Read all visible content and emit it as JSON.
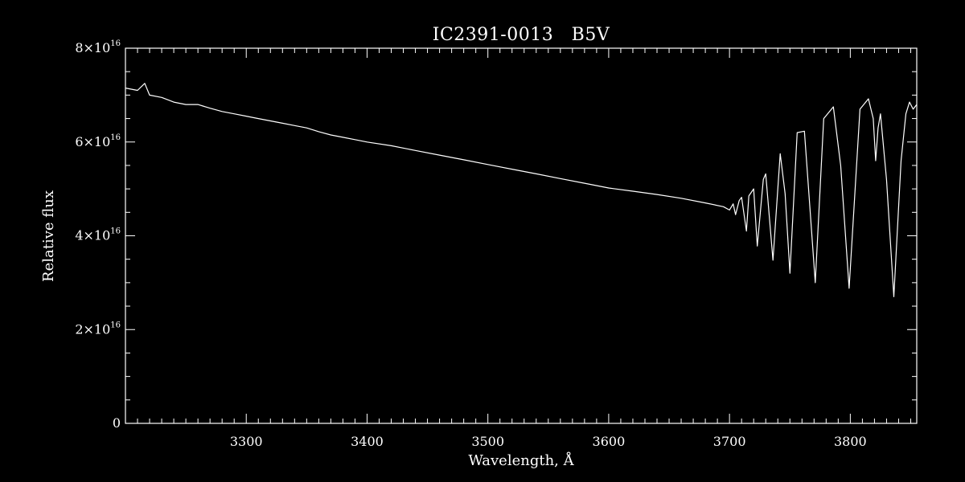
{
  "chart_data": {
    "type": "line",
    "title": "IC2391-0013   B5V",
    "xlabel": "Wavelength, Å",
    "ylabel": "Relative flux",
    "xlim": [
      3200,
      3855
    ],
    "ylim": [
      0,
      8e+16
    ],
    "grid": false,
    "x_ticks": [
      {
        "value": 3300,
        "label": "3300"
      },
      {
        "value": 3400,
        "label": "3400"
      },
      {
        "value": 3500,
        "label": "3500"
      },
      {
        "value": 3600,
        "label": "3600"
      },
      {
        "value": 3700,
        "label": "3700"
      },
      {
        "value": 3800,
        "label": "3800"
      }
    ],
    "y_ticks": [
      {
        "value": 0,
        "mantissa": "0",
        "times": "",
        "base": "",
        "exponent": ""
      },
      {
        "value": 2e+16,
        "mantissa": "2",
        "times": "×",
        "base": "10",
        "exponent": "16"
      },
      {
        "value": 4e+16,
        "mantissa": "4",
        "times": "×",
        "base": "10",
        "exponent": "16"
      },
      {
        "value": 6e+16,
        "mantissa": "6",
        "times": "×",
        "base": "10",
        "exponent": "16"
      },
      {
        "value": 8e+16,
        "mantissa": "8",
        "times": "×",
        "base": "10",
        "exponent": "16"
      }
    ],
    "series": [
      {
        "color": "#ffffff",
        "x": [
          3200,
          3210,
          3216,
          3220,
          3230,
          3240,
          3250,
          3260,
          3270,
          3280,
          3290,
          3300,
          3310,
          3320,
          3330,
          3340,
          3350,
          3360,
          3370,
          3380,
          3390,
          3400,
          3420,
          3440,
          3460,
          3480,
          3500,
          3520,
          3540,
          3560,
          3580,
          3600,
          3620,
          3640,
          3660,
          3680,
          3695,
          3700,
          3703,
          3705,
          3708,
          3710,
          3714,
          3716,
          3720,
          3723,
          3728,
          3730,
          3736,
          3742,
          3746,
          3750,
          3756,
          3762,
          3766,
          3771,
          3778,
          3786,
          3792,
          3799,
          3808,
          3815,
          3819,
          3821,
          3823,
          3825,
          3830,
          3836,
          3842,
          3846,
          3849,
          3852,
          3855
        ],
        "y": [
          7.15e+16,
          7.1e+16,
          7.25e+16,
          7e+16,
          6.95e+16,
          6.85e+16,
          6.8e+16,
          6.8e+16,
          6.72e+16,
          6.65e+16,
          6.6e+16,
          6.55e+16,
          6.5e+16,
          6.45e+16,
          6.4e+16,
          6.35e+16,
          6.3e+16,
          6.22e+16,
          6.15e+16,
          6.1e+16,
          6.05e+16,
          6e+16,
          5.92e+16,
          5.82e+16,
          5.72e+16,
          5.62e+16,
          5.52e+16,
          5.42e+16,
          5.32e+16,
          5.22e+16,
          5.12e+16,
          5.02e+16,
          4.95e+16,
          4.88e+16,
          4.8e+16,
          4.7e+16,
          4.62e+16,
          4.55e+16,
          4.68e+16,
          4.45e+16,
          4.75e+16,
          4.82e+16,
          4.1e+16,
          4.85e+16,
          5e+16,
          3.78e+16,
          5.2e+16,
          5.32e+16,
          3.48e+16,
          5.75e+16,
          4.9e+16,
          3.2e+16,
          6.2e+16,
          6.23e+16,
          4.8e+16,
          3e+16,
          6.5e+16,
          6.75e+16,
          5.5e+16,
          2.88e+16,
          6.7e+16,
          6.92e+16,
          6.5e+16,
          5.6e+16,
          6.3e+16,
          6.6e+16,
          5.2e+16,
          2.7e+16,
          5.6e+16,
          6.6e+16,
          6.85e+16,
          6.7e+16,
          6.8e+16
        ]
      }
    ]
  }
}
